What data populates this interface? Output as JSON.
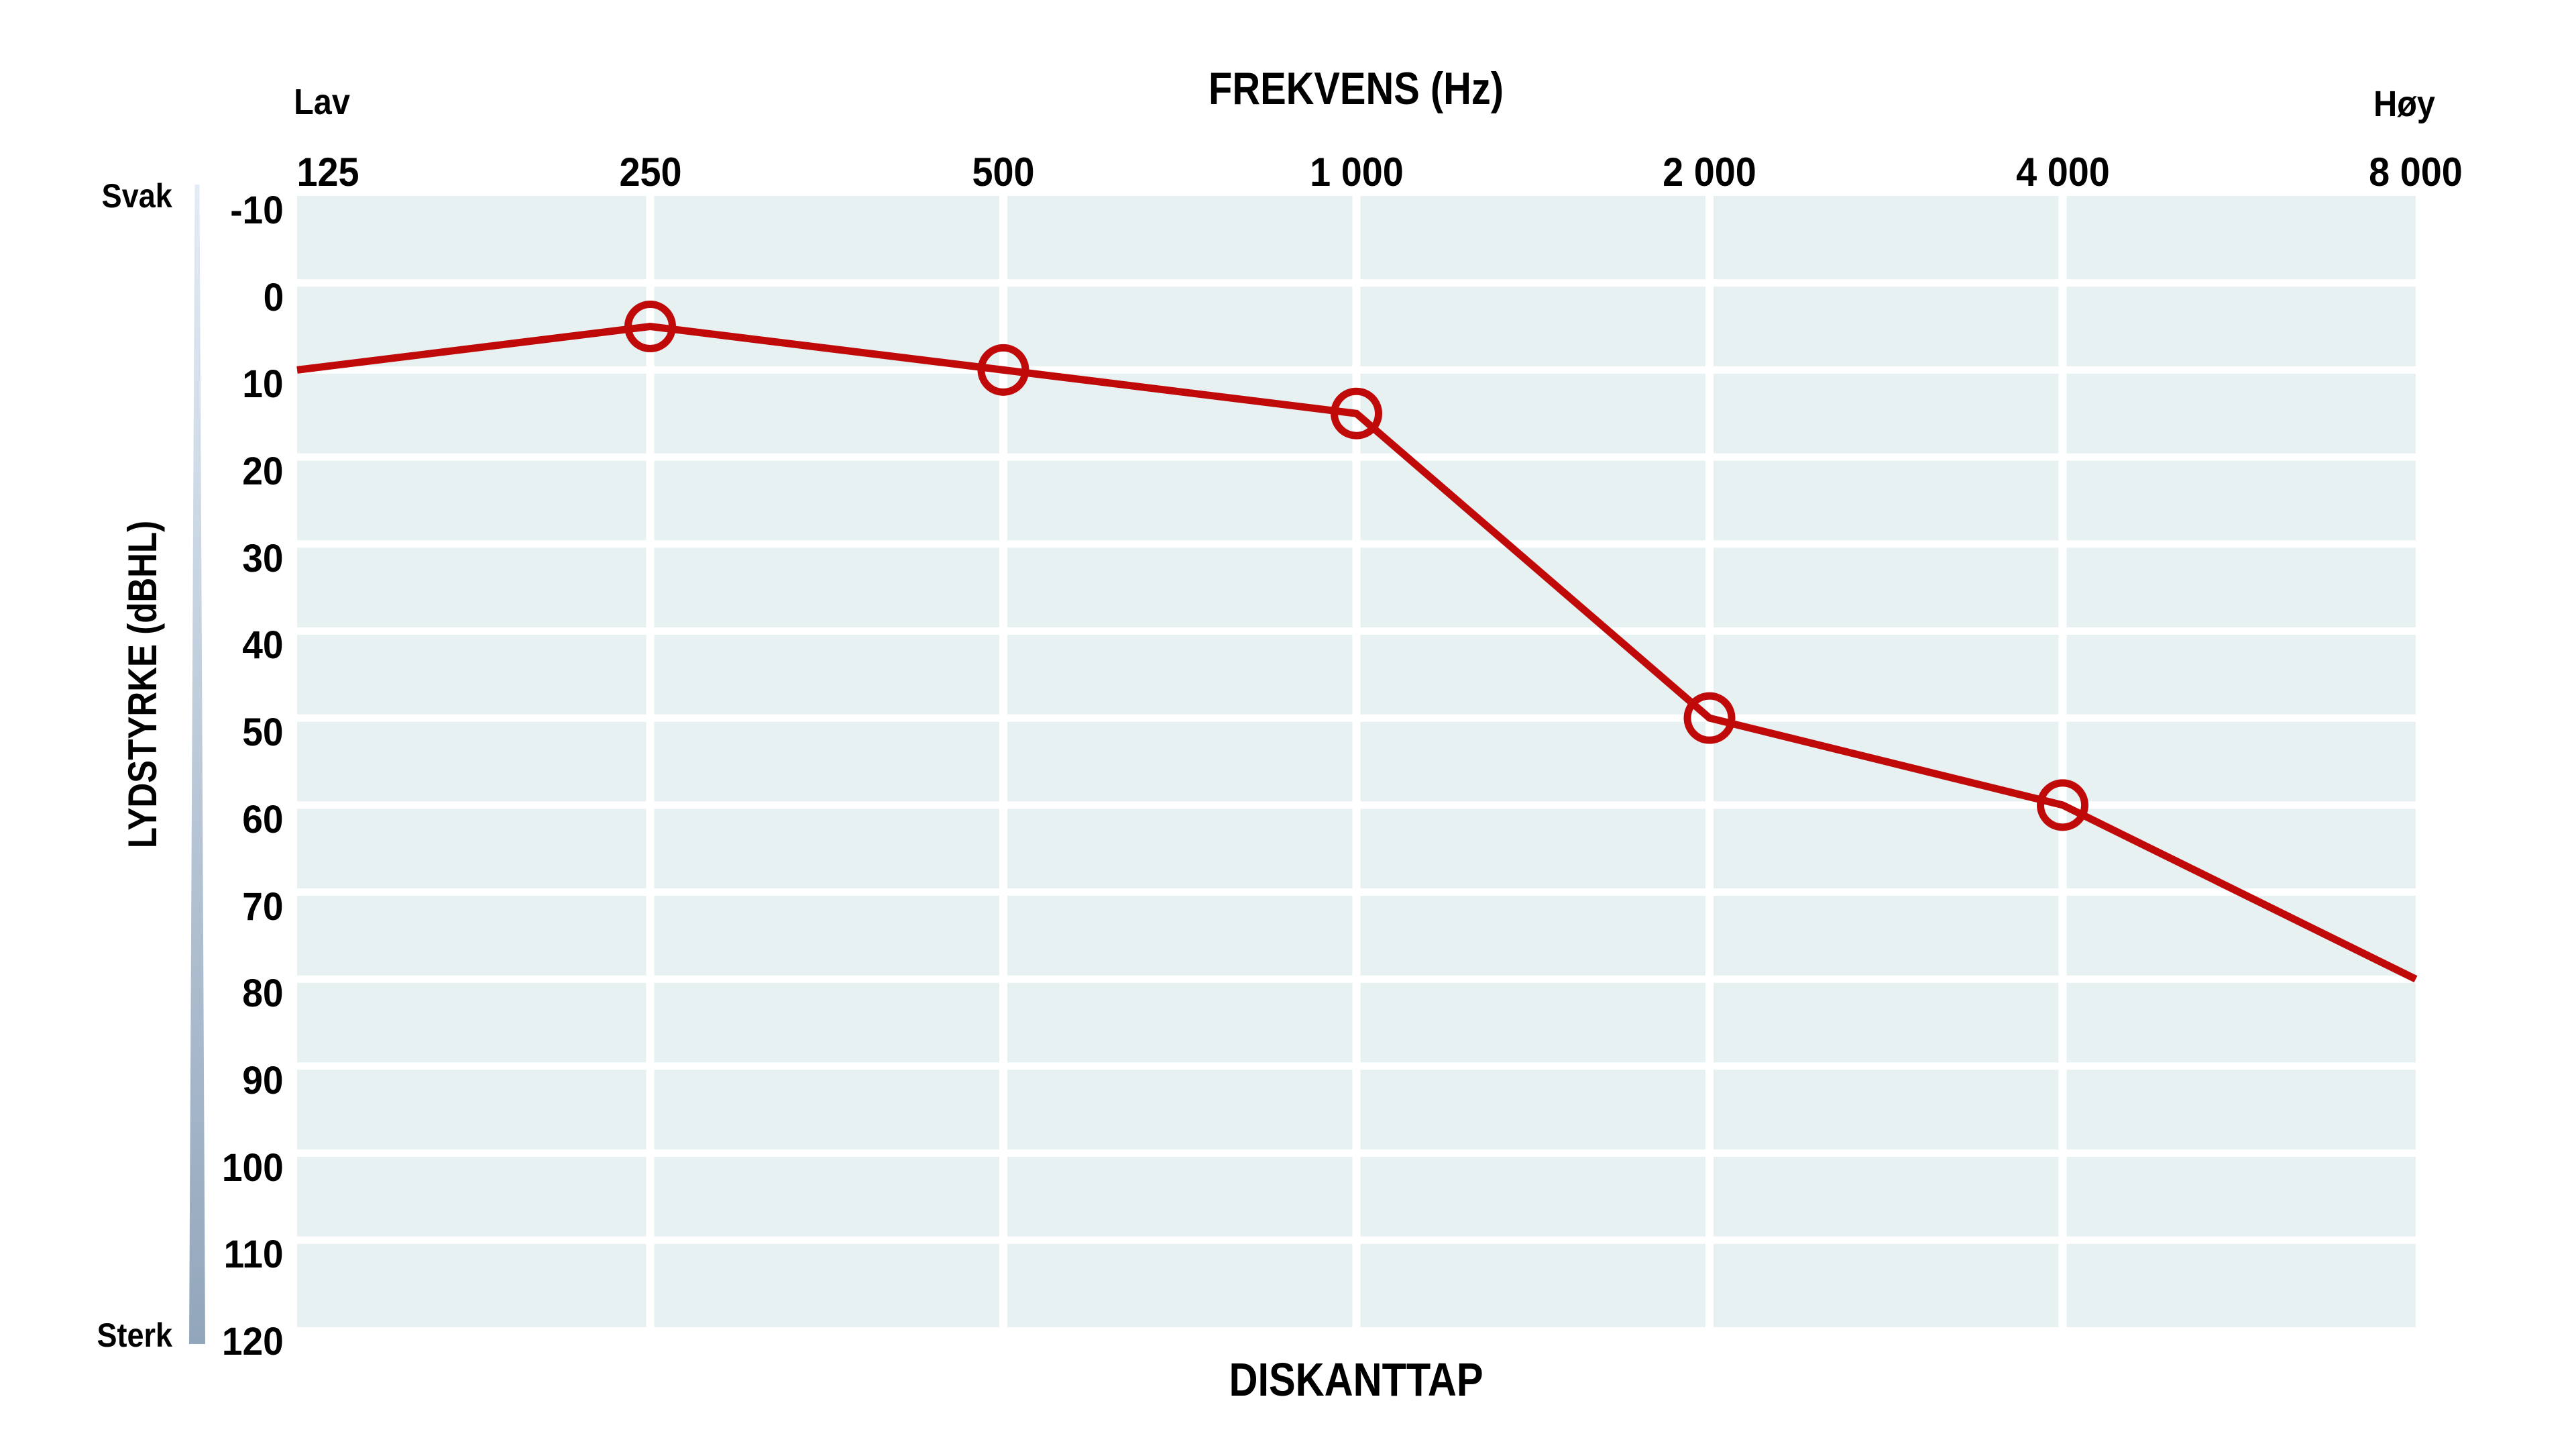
{
  "header": {
    "title": "FREKVENS (Hz)",
    "axis_low_label": "Lav",
    "axis_high_label": "Høy"
  },
  "y_axis": {
    "label": "LYDSTYRKE (dBHL)",
    "top_label": "Svak",
    "bottom_label": "Sterk",
    "ticks": [
      "-10",
      "0",
      "10",
      "20",
      "30",
      "40",
      "50",
      "60",
      "70",
      "80",
      "90",
      "100",
      "110",
      "120"
    ]
  },
  "caption": "DISKANTTAP",
  "chart_data": {
    "type": "line",
    "title": "FREKVENS (Hz)",
    "xlabel": "FREKVENS (Hz)",
    "ylabel": "LYDSTYRKE (dBHL)",
    "bottom_caption": "DISKANTTAP",
    "x_scale": "octave",
    "categories": [
      "125",
      "250",
      "500",
      "1 000",
      "2 000",
      "4 000",
      "8 000"
    ],
    "frequencies_hz": [
      125,
      250,
      500,
      1000,
      2000,
      4000,
      8000
    ],
    "series": [
      {
        "name": "hearing-threshold",
        "values_dbhl": [
          10,
          5,
          10,
          15,
          50,
          60,
          80
        ],
        "markers": [
          false,
          true,
          true,
          true,
          true,
          true,
          false
        ]
      }
    ],
    "ylim": [
      -10,
      120
    ],
    "y_ticks": [
      -10,
      0,
      10,
      20,
      30,
      40,
      50,
      60,
      70,
      80,
      90,
      100,
      110,
      120
    ],
    "grid": {
      "horizontal_step_db": 10,
      "vertical_at_each_frequency": true,
      "gridlines_visible": true
    },
    "legend": {
      "visible": false
    },
    "colors": {
      "line": "#c00a0a",
      "plot_background": "#e8f1f1",
      "gridlines": "#ffffff",
      "text": "#000000",
      "page_background": "#ffffff",
      "loudness_bar_top": "#e3ecf6",
      "loudness_bar_bottom": "#92a6bb"
    }
  }
}
